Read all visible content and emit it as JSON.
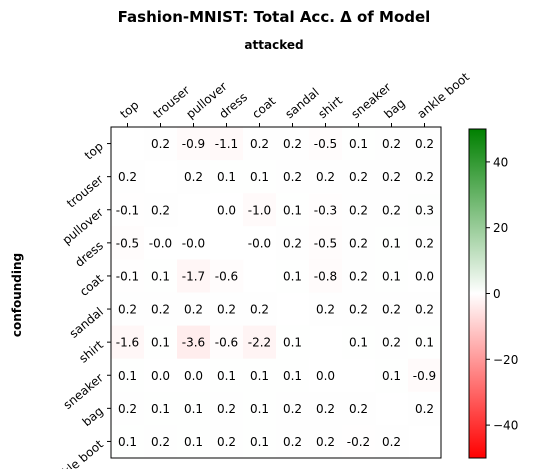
{
  "chart_data": {
    "type": "heatmap",
    "title": "Fashion-MNIST: Total Acc. Δ of Model",
    "xlabel": "attacked",
    "ylabel": "confounding",
    "x_categories": [
      "top",
      "trouser",
      "pullover",
      "dress",
      "coat",
      "sandal",
      "shirt",
      "sneaker",
      "bag",
      "ankle boot"
    ],
    "y_categories": [
      "top",
      "trouser",
      "pullover",
      "dress",
      "coat",
      "sandal",
      "shirt",
      "sneaker",
      "bag",
      "ankle boot"
    ],
    "values": [
      [
        null,
        0.2,
        -0.9,
        -1.1,
        0.2,
        0.2,
        -0.5,
        0.1,
        0.2,
        0.2
      ],
      [
        0.2,
        null,
        0.2,
        0.1,
        0.1,
        0.2,
        0.2,
        0.2,
        0.2,
        0.2
      ],
      [
        -0.1,
        0.2,
        null,
        0.0,
        -1.0,
        0.1,
        -0.3,
        0.2,
        0.2,
        0.3
      ],
      [
        -0.5,
        -0.0,
        -0.0,
        null,
        -0.0,
        0.2,
        -0.5,
        0.2,
        0.1,
        0.2
      ],
      [
        -0.1,
        0.1,
        -1.7,
        -0.6,
        null,
        0.1,
        -0.8,
        0.2,
        0.1,
        0.0
      ],
      [
        0.2,
        0.2,
        0.2,
        0.2,
        0.2,
        null,
        0.2,
        0.2,
        0.2,
        0.2
      ],
      [
        -1.6,
        0.1,
        -3.6,
        -0.6,
        -2.2,
        0.1,
        null,
        0.1,
        0.2,
        0.1
      ],
      [
        0.1,
        0.0,
        0.0,
        0.1,
        0.1,
        0.1,
        0.0,
        null,
        0.1,
        -0.9
      ],
      [
        0.2,
        0.1,
        0.1,
        0.2,
        0.1,
        0.2,
        0.2,
        0.2,
        null,
        0.2
      ],
      [
        0.1,
        0.2,
        0.1,
        0.2,
        0.1,
        0.2,
        0.2,
        -0.2,
        0.2,
        null
      ]
    ],
    "colorbar": {
      "range": [
        -50,
        50
      ],
      "ticks": [
        -40,
        -20,
        0,
        20,
        40
      ],
      "tick_labels": [
        "−40",
        "−20",
        "0",
        "20",
        "40"
      ],
      "colors": {
        "low": "#ff0000",
        "mid": "#ffffff",
        "high": "#008000"
      }
    },
    "grid": false,
    "legend": "colorbar-right"
  }
}
